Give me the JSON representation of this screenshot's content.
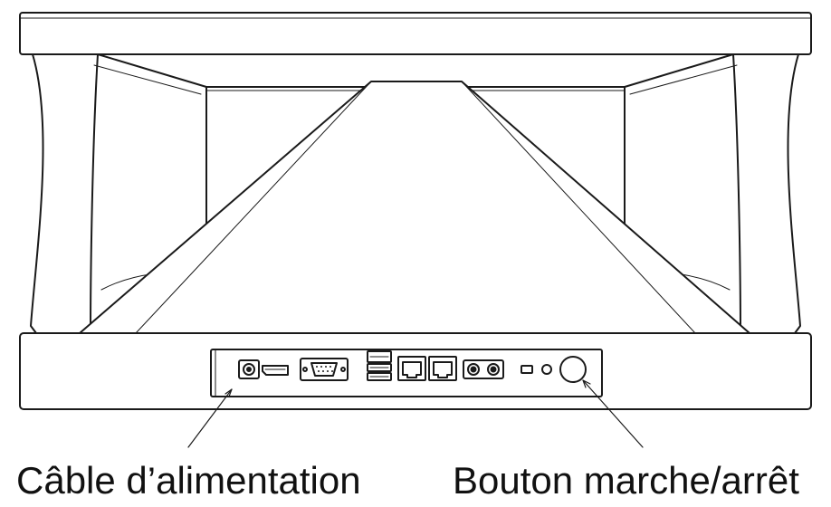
{
  "labels": {
    "power_cable": "Câble d’alimentation",
    "power_button": "Bouton marche/arrêt"
  },
  "colors": {
    "stroke": "#1a1a1a",
    "fill": "#ffffff"
  }
}
